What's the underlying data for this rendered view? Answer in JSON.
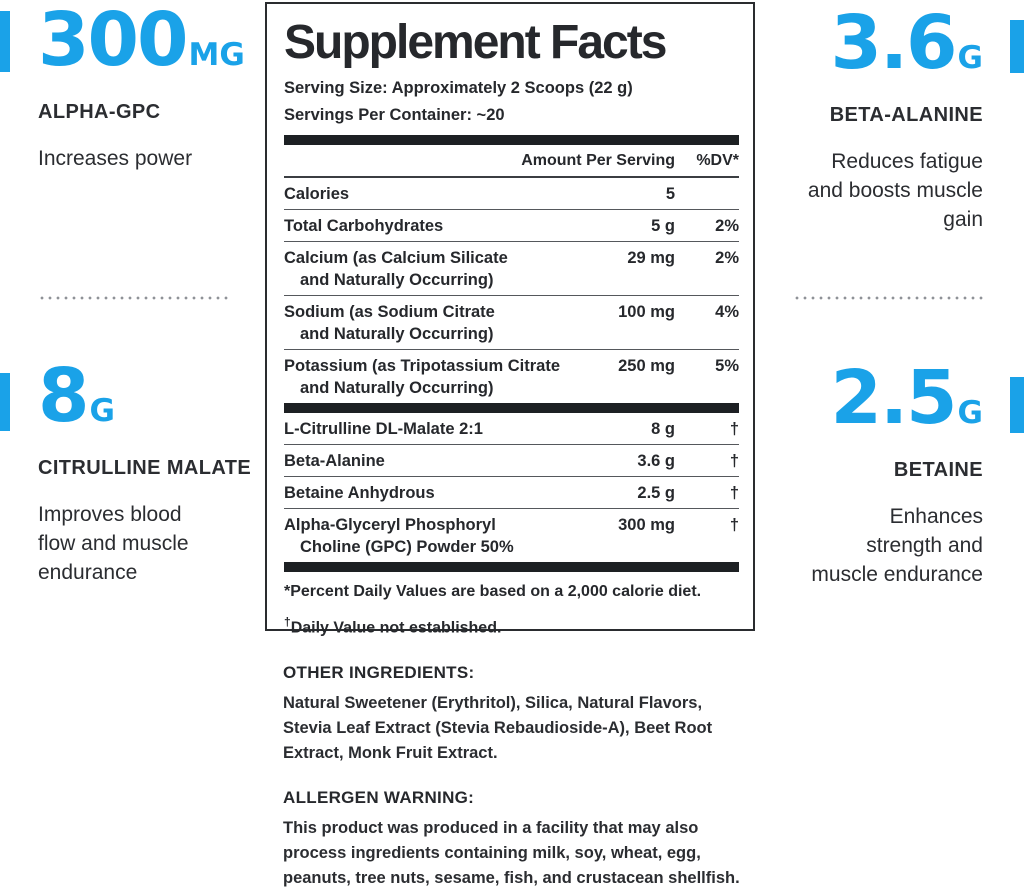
{
  "colors": {
    "accent_blue": "#1aa2e8",
    "text_dark": "#26282c",
    "rule_gray": "#55585c",
    "bar_black": "#1d2023"
  },
  "callouts": {
    "top_left": {
      "value": "300",
      "unit": "MG",
      "name": "ALPHA-GPC",
      "desc_lines": [
        "Increases power"
      ]
    },
    "bottom_left": {
      "value": "8",
      "unit": "G",
      "name": "CITRULLINE MALATE",
      "desc_lines": [
        "Improves blood",
        "flow and muscle",
        "endurance"
      ]
    },
    "top_right": {
      "value": "3.6",
      "unit": "G",
      "name": "BETA-ALANINE",
      "desc_lines": [
        "Reduces fatigue",
        "and boosts muscle",
        "gain"
      ]
    },
    "bottom_right": {
      "value": "2.5",
      "unit": "G",
      "name": "BETAINE",
      "desc_lines": [
        "Enhances",
        "strength and",
        "muscle endurance"
      ]
    }
  },
  "panel": {
    "title": "Supplement Facts",
    "serving_size": "Serving Size: Approximately 2 Scoops (22 g)",
    "servings_per_container": "Servings Per Container: ~20",
    "col_amount": "Amount Per Serving",
    "col_dv": "%DV*",
    "rows": [
      {
        "name": "Calories",
        "name2": "",
        "amount": "5",
        "dv": ""
      },
      {
        "name": "Total Carbohydrates",
        "name2": "",
        "amount": "5 g",
        "dv": "2%"
      },
      {
        "name": "Calcium (as Calcium Silicate",
        "name2": "and Naturally Occurring)",
        "amount": "29 mg",
        "dv": "2%"
      },
      {
        "name": "Sodium (as Sodium Citrate",
        "name2": "and Naturally Occurring)",
        "amount": "100 mg",
        "dv": "4%"
      },
      {
        "name": "Potassium (as Tripotassium Citrate",
        "name2": "and Naturally Occurring)",
        "amount": "250 mg",
        "dv": "5%"
      }
    ],
    "rows2": [
      {
        "name": "L-Citrulline DL-Malate 2:1",
        "name2": "",
        "amount": "8 g",
        "dv": "†"
      },
      {
        "name": "Beta-Alanine",
        "name2": "",
        "amount": "3.6 g",
        "dv": "†"
      },
      {
        "name": "Betaine Anhydrous",
        "name2": "",
        "amount": "2.5 g",
        "dv": "†"
      },
      {
        "name": "Alpha-Glyceryl Phosphoryl",
        "name2": "Choline (GPC) Powder 50%",
        "amount": "300 mg",
        "dv": "†"
      }
    ],
    "footnote_dv": "*Percent Daily Values are based on a 2,000 calorie diet.",
    "footnote_dagger_sym": "†",
    "footnote_dagger_text": "Daily Value not established."
  },
  "bottom": {
    "other_ingredients_heading": "OTHER INGREDIENTS:",
    "other_ingredients_lines": [
      "Natural Sweetener (Erythritol), Silica, Natural Flavors,",
      "Stevia Leaf Extract (Stevia Rebaudioside-A), Beet Root",
      "Extract, Monk Fruit Extract."
    ],
    "allergen_heading": "ALLERGEN WARNING:",
    "allergen_lines": [
      "This product was produced in a facility that may also",
      "process ingredients containing milk, soy, wheat, egg,",
      "peanuts, tree nuts, sesame, fish, and crustacean shellfish."
    ]
  }
}
